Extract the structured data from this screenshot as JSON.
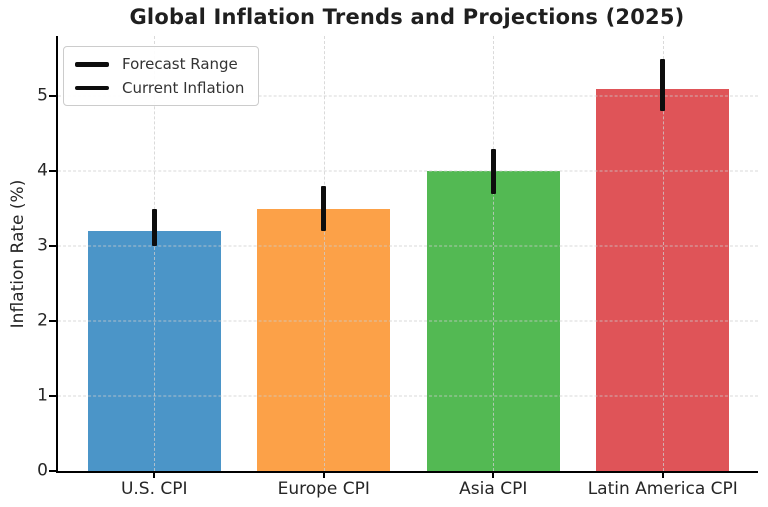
{
  "chart_data": {
    "type": "bar",
    "title": "Global Inflation Trends and Projections (2025)",
    "xlabel": "",
    "ylabel": "Inflation Rate (%)",
    "categories": [
      "U.S. CPI",
      "Europe CPI",
      "Asia CPI",
      "Latin America CPI"
    ],
    "series": [
      {
        "name": "Current Inflation",
        "values": [
          3.2,
          3.5,
          4.0,
          5.1
        ],
        "colors": [
          "#4B95C8",
          "#FCA148",
          "#53B953",
          "#DF5458"
        ]
      }
    ],
    "error_bars": {
      "name": "Forecast Range",
      "low": [
        3.0,
        3.2,
        3.7,
        4.8
      ],
      "high": [
        3.5,
        3.8,
        4.3,
        5.5
      ],
      "color": "#0d0d0d"
    },
    "ylim": [
      0,
      5.8
    ],
    "yticks": [
      0,
      1,
      2,
      3,
      4,
      5
    ],
    "grid": {
      "horizontal": true,
      "vertical": true,
      "style": "dashed",
      "color": "#cdcdcd"
    },
    "legend": {
      "position": "upper-left",
      "entries": [
        {
          "label": "Forecast Range",
          "swatch": "black-line-thick"
        },
        {
          "label": "Current Inflation",
          "swatch": "black-line"
        }
      ]
    },
    "spines": {
      "left": true,
      "bottom": true,
      "top": false,
      "right": false
    }
  }
}
